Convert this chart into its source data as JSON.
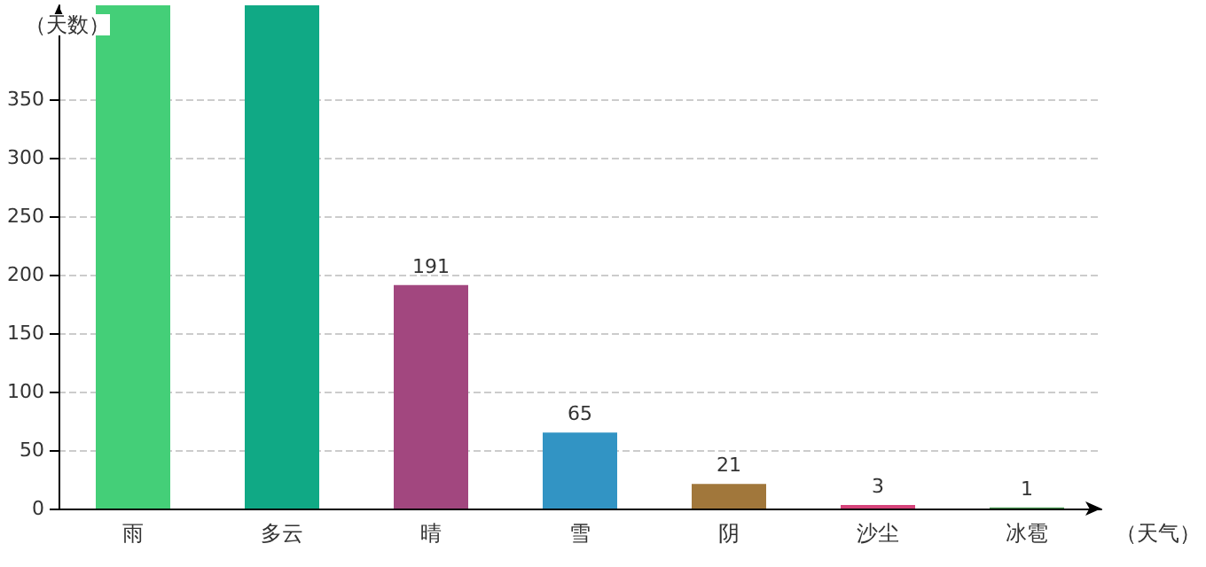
{
  "chart_data": {
    "type": "bar",
    "xlabel": "（天气）",
    "ylabel": "（天数）",
    "categories": [
      "雨",
      "多云",
      "晴",
      "雪",
      "阴",
      "沙尘",
      "冰雹"
    ],
    "values": [
      430,
      430,
      191,
      65,
      21,
      3,
      1
    ],
    "colors": [
      "#44cf78",
      "#10a985",
      "#a2477f",
      "#3294c4",
      "#a1773b",
      "#d6437a",
      "#4c9c55"
    ],
    "value_labels": [
      null,
      null,
      "191",
      "65",
      "21",
      "3",
      "1"
    ],
    "ylim": [
      0,
      430
    ],
    "yticks": [
      0,
      50,
      100,
      150,
      200,
      250,
      300,
      350
    ],
    "grid": "y"
  }
}
